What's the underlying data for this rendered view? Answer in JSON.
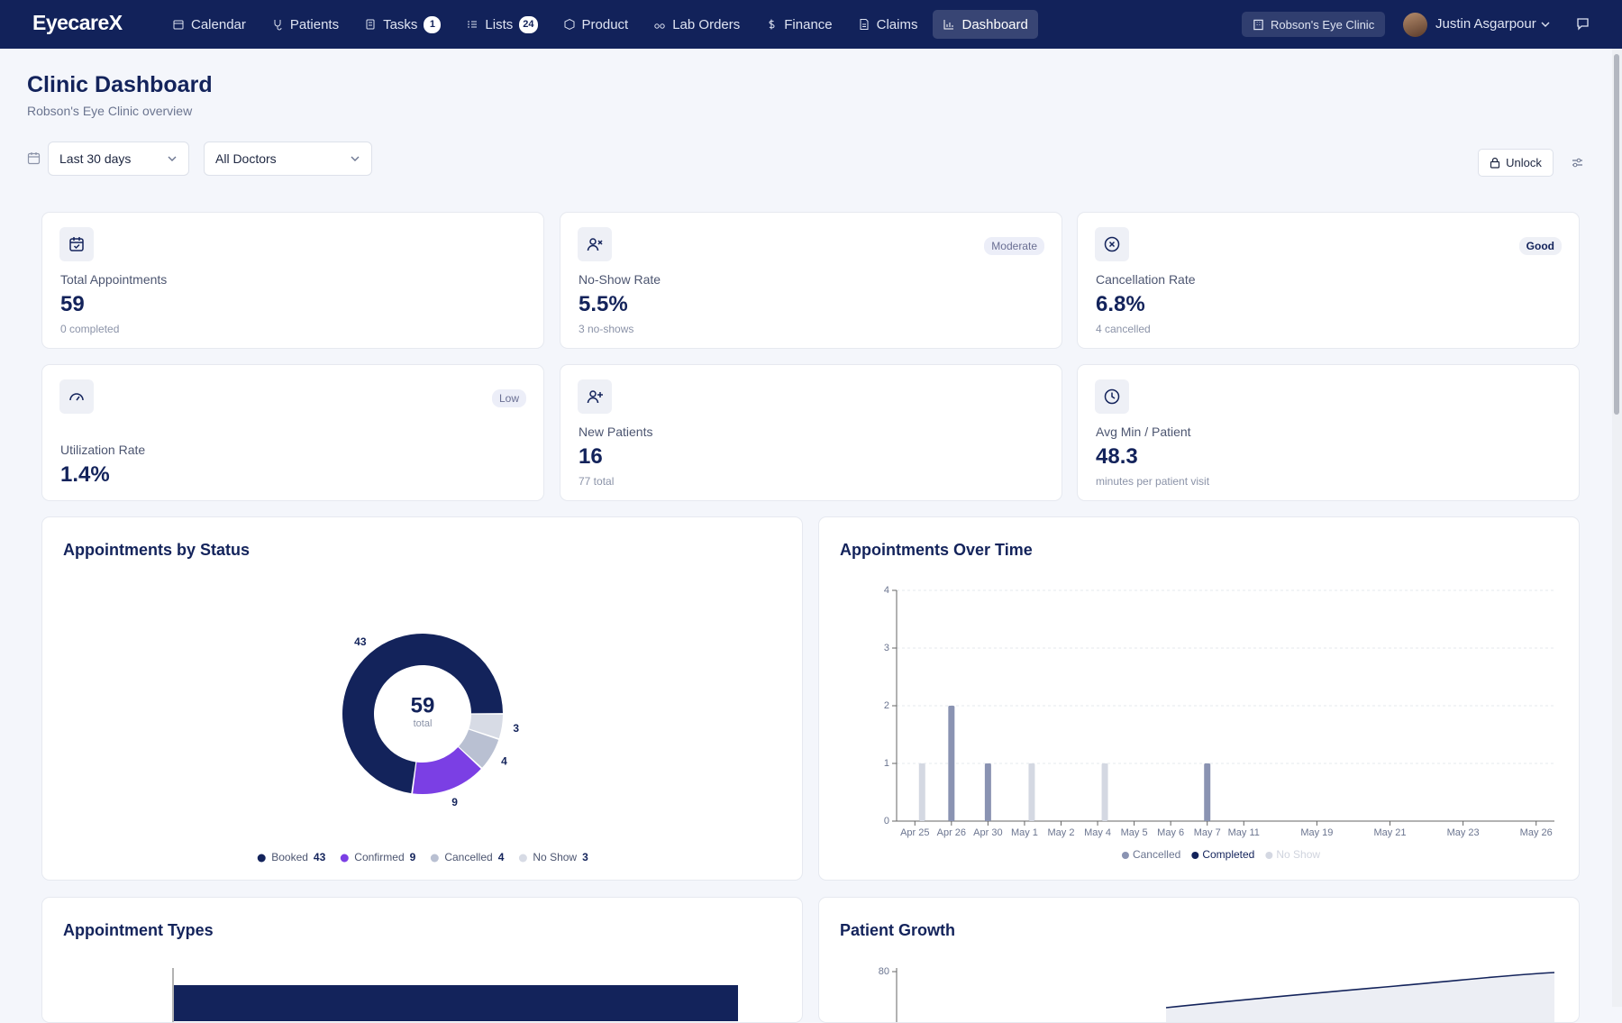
{
  "nav": {
    "logo": "EyecareX",
    "items": [
      {
        "label": "Calendar"
      },
      {
        "label": "Patients"
      },
      {
        "label": "Tasks",
        "badge": "1"
      },
      {
        "label": "Lists",
        "badge": "24"
      },
      {
        "label": "Product"
      },
      {
        "label": "Lab Orders"
      },
      {
        "label": "Finance"
      },
      {
        "label": "Claims"
      },
      {
        "label": "Dashboard",
        "active": true
      }
    ],
    "clinic": "Robson's Eye Clinic",
    "user": "Justin Asgarpour"
  },
  "header": {
    "title": "Clinic Dashboard",
    "subtitle": "Robson's Eye Clinic overview"
  },
  "filters": {
    "range": "Last 30 days",
    "doctor": "All Doctors",
    "unlock": "Unlock"
  },
  "kpis": [
    {
      "label": "Total Appointments",
      "value": "59",
      "sub": "0 completed"
    },
    {
      "label": "No-Show Rate",
      "value": "5.5%",
      "sub": "3 no-shows",
      "badge": "Moderate"
    },
    {
      "label": "Cancellation Rate",
      "value": "6.8%",
      "sub": "4 cancelled",
      "badge": "Good"
    },
    {
      "label": "Utilization Rate",
      "value": "1.4%",
      "badge": "Low"
    },
    {
      "label": "New Patients",
      "value": "16",
      "sub": "77 total"
    },
    {
      "label": "Avg Min / Patient",
      "value": "48.3",
      "sub": "minutes per patient visit"
    }
  ],
  "chart_data": [
    {
      "type": "pie",
      "title": "Appointments by Status",
      "categories": [
        "Booked",
        "Confirmed",
        "Cancelled",
        "No Show"
      ],
      "values": [
        43,
        9,
        4,
        3
      ],
      "colors": [
        "#13235b",
        "#7b3fe4",
        "#b9c0d2",
        "#d7dbe5"
      ],
      "total": 59,
      "total_label": "total"
    },
    {
      "type": "bar",
      "title": "Appointments Over Time",
      "categories": [
        "Apr 25",
        "Apr 26",
        "Apr 30",
        "May 1",
        "May 2",
        "May 4",
        "May 5",
        "May 6",
        "May 7",
        "May 11",
        null,
        "May 19",
        null,
        "May 21",
        null,
        "May 23",
        null,
        "May 26"
      ],
      "series": [
        {
          "name": "Cancelled",
          "color": "#8a93b2",
          "values": [
            0,
            2,
            1,
            0,
            0,
            0,
            0,
            0,
            1,
            0,
            0,
            0,
            0,
            0,
            0,
            0,
            0,
            0
          ]
        },
        {
          "name": "Completed",
          "color": "#13235b",
          "values": [
            0,
            0,
            0,
            0,
            0,
            0,
            0,
            0,
            0,
            0,
            0,
            0,
            0,
            0,
            0,
            0,
            0,
            0
          ]
        },
        {
          "name": "No Show",
          "color": "#d4d8e2",
          "inactive": true,
          "values": [
            1,
            0,
            0,
            1,
            0,
            1,
            0,
            0,
            0,
            0,
            0,
            0,
            0,
            0,
            0,
            0,
            0,
            0
          ]
        }
      ],
      "ylim": [
        0,
        4
      ],
      "yticks": [
        0,
        1,
        2,
        3,
        4
      ],
      "grid": true
    },
    {
      "type": "bar-partial",
      "title": "Appointment Types"
    },
    {
      "type": "line-partial",
      "title": "Patient Growth",
      "yticks": [
        80
      ]
    }
  ]
}
